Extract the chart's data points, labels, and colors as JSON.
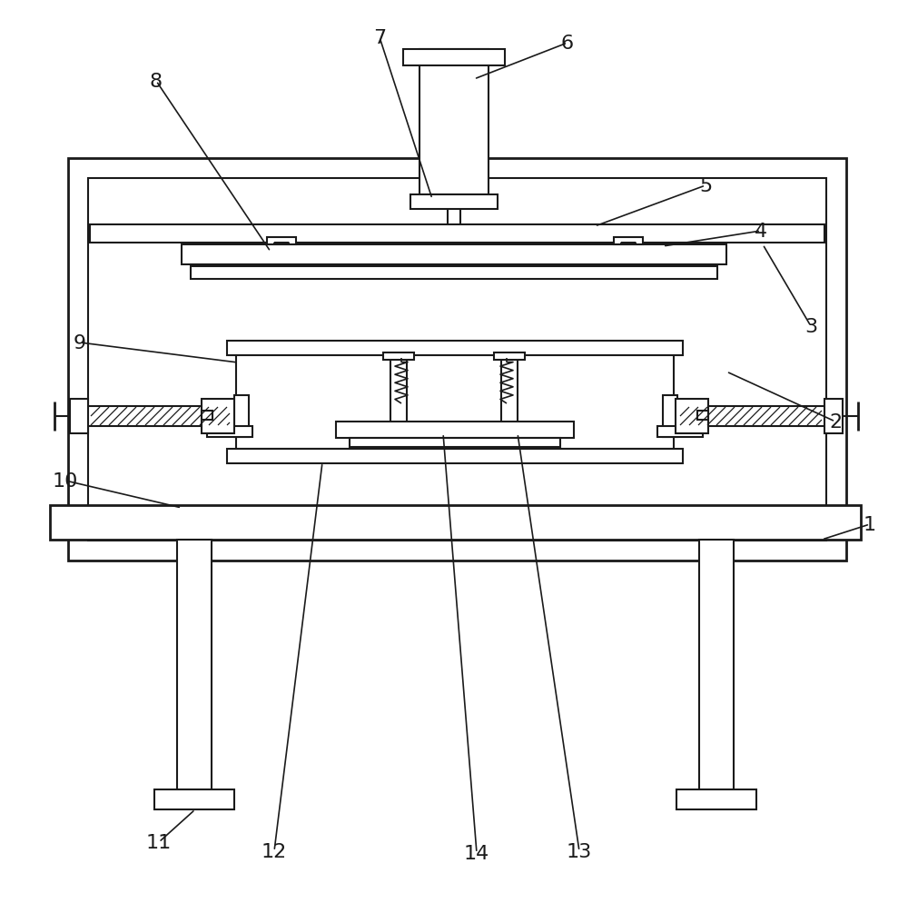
{
  "bg_color": "#ffffff",
  "line_color": "#1a1a1a",
  "lw": 1.5,
  "lw2": 2.0,
  "lw_thin": 0.9
}
